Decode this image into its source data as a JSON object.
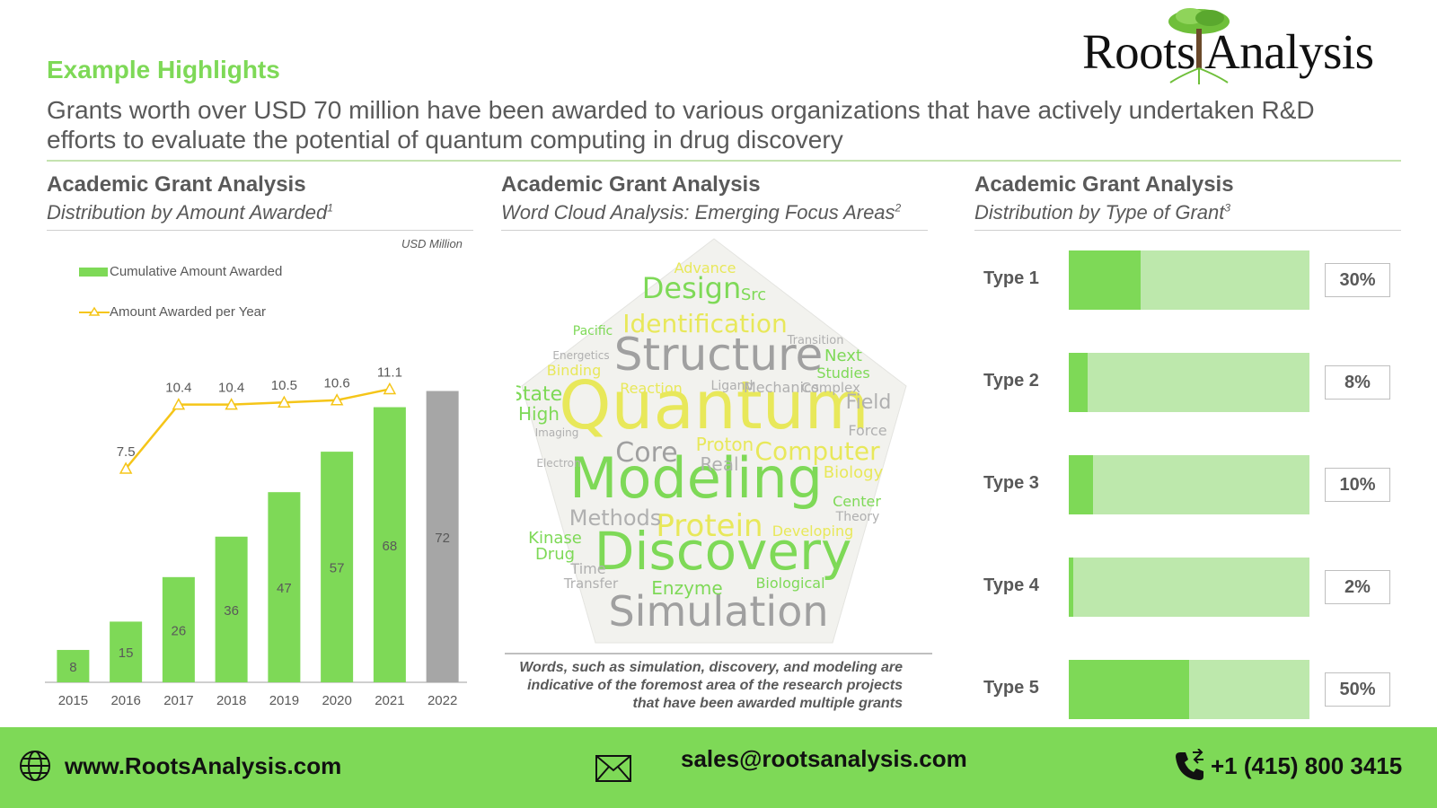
{
  "brand": {
    "name": "Roots Analysis",
    "green": "#7ed957",
    "light_green": "#bde8ac",
    "grey": "#a6a6a6"
  },
  "header": {
    "eyebrow": "Example Highlights",
    "headline": "Grants worth over USD 70 million have been awarded to various organizations that have actively undertaken R&D efforts to evaluate the potential of quantum computing in drug discovery"
  },
  "panels": [
    {
      "title": "Academic Grant Analysis",
      "subtitle": "Distribution by Amount Awarded",
      "footnote": "1"
    },
    {
      "title": "Academic Grant Analysis",
      "subtitle": "Word Cloud Analysis: Emerging Focus Areas",
      "footnote": "2"
    },
    {
      "title": "Academic Grant Analysis",
      "subtitle": "Distribution by Type of Grant",
      "footnote": "3"
    }
  ],
  "chart_data": [
    {
      "type": "bar",
      "unit_label": "USD Million",
      "categories": [
        "2015",
        "2016",
        "2017",
        "2018",
        "2019",
        "2020",
        "2021",
        "2022"
      ],
      "series": [
        {
          "name": "Cumulative Amount Awarded",
          "values": [
            8,
            15,
            26,
            36,
            47,
            57,
            68,
            72
          ],
          "color": "#7ed957",
          "highlight_last_color": "#a6a6a6"
        },
        {
          "name": "Amount Awarded per Year",
          "kind": "line",
          "values": [
            null,
            7.5,
            10.4,
            10.4,
            10.5,
            10.6,
            11.1,
            null
          ],
          "color": "#f5c518"
        }
      ],
      "ylim": [
        0,
        75
      ],
      "grid": false,
      "legend": "top-left"
    },
    {
      "type": "bar",
      "orientation": "horizontal",
      "categories": [
        "Type 1",
        "Type 2",
        "Type 3",
        "Type 4",
        "Type 5"
      ],
      "values": [
        30,
        8,
        10,
        2,
        50
      ],
      "value_labels": [
        "30%",
        "8%",
        "10%",
        "2%",
        "50%"
      ],
      "xlim": [
        0,
        100
      ]
    }
  ],
  "word_cloud": {
    "words": [
      {
        "text": "Quantum",
        "color": "#e8e85a"
      },
      {
        "text": "Modeling",
        "color": "#7ed957"
      },
      {
        "text": "Discovery",
        "color": "#7ed957"
      },
      {
        "text": "Structure",
        "color": "#a0a0a0"
      },
      {
        "text": "Simulation",
        "color": "#a0a0a0"
      },
      {
        "text": "Design",
        "color": "#7ed957"
      },
      {
        "text": "Identification",
        "color": "#e8e85a"
      },
      {
        "text": "Protein",
        "color": "#e8e85a"
      },
      {
        "text": "Computer",
        "color": "#e8e85a"
      },
      {
        "text": "Core",
        "color": "#a0a0a0"
      },
      {
        "text": "Proton",
        "color": "#e8e85a"
      },
      {
        "text": "Methods",
        "color": "#b0b0b0"
      },
      {
        "text": "Enzyme",
        "color": "#7ed957"
      },
      {
        "text": "State",
        "color": "#7ed957"
      },
      {
        "text": "High",
        "color": "#7ed957"
      },
      {
        "text": "Kinase",
        "color": "#7ed957"
      },
      {
        "text": "Drug",
        "color": "#7ed957"
      },
      {
        "text": "Field",
        "color": "#b0b0b0"
      },
      {
        "text": "Next",
        "color": "#7ed957"
      },
      {
        "text": "Studies",
        "color": "#7ed957"
      },
      {
        "text": "Biological",
        "color": "#7ed957"
      },
      {
        "text": "Center",
        "color": "#7ed957"
      },
      {
        "text": "Theory",
        "color": "#b0b0b0"
      },
      {
        "text": "Real",
        "color": "#b0b0b0"
      },
      {
        "text": "Pacific",
        "color": "#7ed957"
      },
      {
        "text": "Binding",
        "color": "#e8e85a"
      },
      {
        "text": "Mechanics",
        "color": "#b0b0b0"
      },
      {
        "text": "Transfer",
        "color": "#b0b0b0"
      },
      {
        "text": "Time",
        "color": "#b0b0b0"
      },
      {
        "text": "Developing",
        "color": "#e8e85a"
      },
      {
        "text": "Biology",
        "color": "#e8e85a"
      },
      {
        "text": "Force",
        "color": "#b0b0b0"
      },
      {
        "text": "Advance",
        "color": "#e8e85a"
      },
      {
        "text": "Src",
        "color": "#7ed957"
      },
      {
        "text": "Ligand",
        "color": "#b0b0b0"
      },
      {
        "text": "Transition",
        "color": "#b0b0b0"
      },
      {
        "text": "Energetics",
        "color": "#b0b0b0"
      },
      {
        "text": "Electron",
        "color": "#b0b0b0"
      },
      {
        "text": "Complex",
        "color": "#b0b0b0"
      },
      {
        "text": "Reaction",
        "color": "#e8e85a"
      },
      {
        "text": "Imaging",
        "color": "#b0b0b0"
      }
    ],
    "caption": "Words, such as simulation, discovery, and modeling are indicative of the foremost area of the research projects that have been awarded multiple grants"
  },
  "footer": {
    "website": "www.RootsAnalysis.com",
    "email": "sales@rootsanalysis.com",
    "phone": "+1 (415) 800 3415",
    "icons": [
      "globe-icon",
      "envelope-icon",
      "phone-icon"
    ]
  }
}
